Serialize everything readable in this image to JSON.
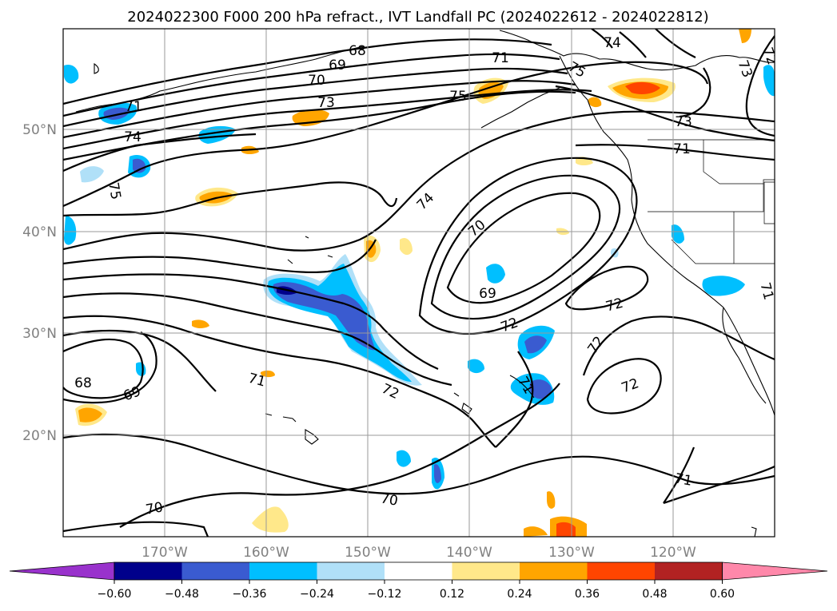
{
  "title": "2024022300 F000 200 hPa refract., IVT Landfall PC (2024022612 - 2024022812)",
  "lat_labels": [
    "50°N",
    "40°N",
    "30°N",
    "20°N"
  ],
  "lon_labels": [
    "170°W",
    "160°W",
    "150°W",
    "140°W",
    "130°W",
    "120°W"
  ],
  "contour_labels": [
    "68",
    "69",
    "70",
    "73",
    "71",
    "74",
    "75",
    "75",
    "74",
    "75",
    "73",
    "72",
    "73",
    "71",
    "74",
    "70",
    "69",
    "72",
    "72",
    "71",
    "72",
    "68",
    "69",
    "71",
    "72",
    "71",
    "72",
    "70",
    "70",
    "71",
    "71"
  ],
  "colorbar": {
    "ticks": [
      "−0.60",
      "−0.48",
      "−0.36",
      "−0.24",
      "−0.12",
      "0.12",
      "0.24",
      "0.36",
      "0.48",
      "0.60"
    ],
    "colors": [
      "#9932cc",
      "#00008b",
      "#3a5bd0",
      "#00bfff",
      "#b0e0f8",
      "#ffffff",
      "#ffe88a",
      "#ffa500",
      "#ff4500",
      "#b22222",
      "#ff88aa"
    ]
  }
}
